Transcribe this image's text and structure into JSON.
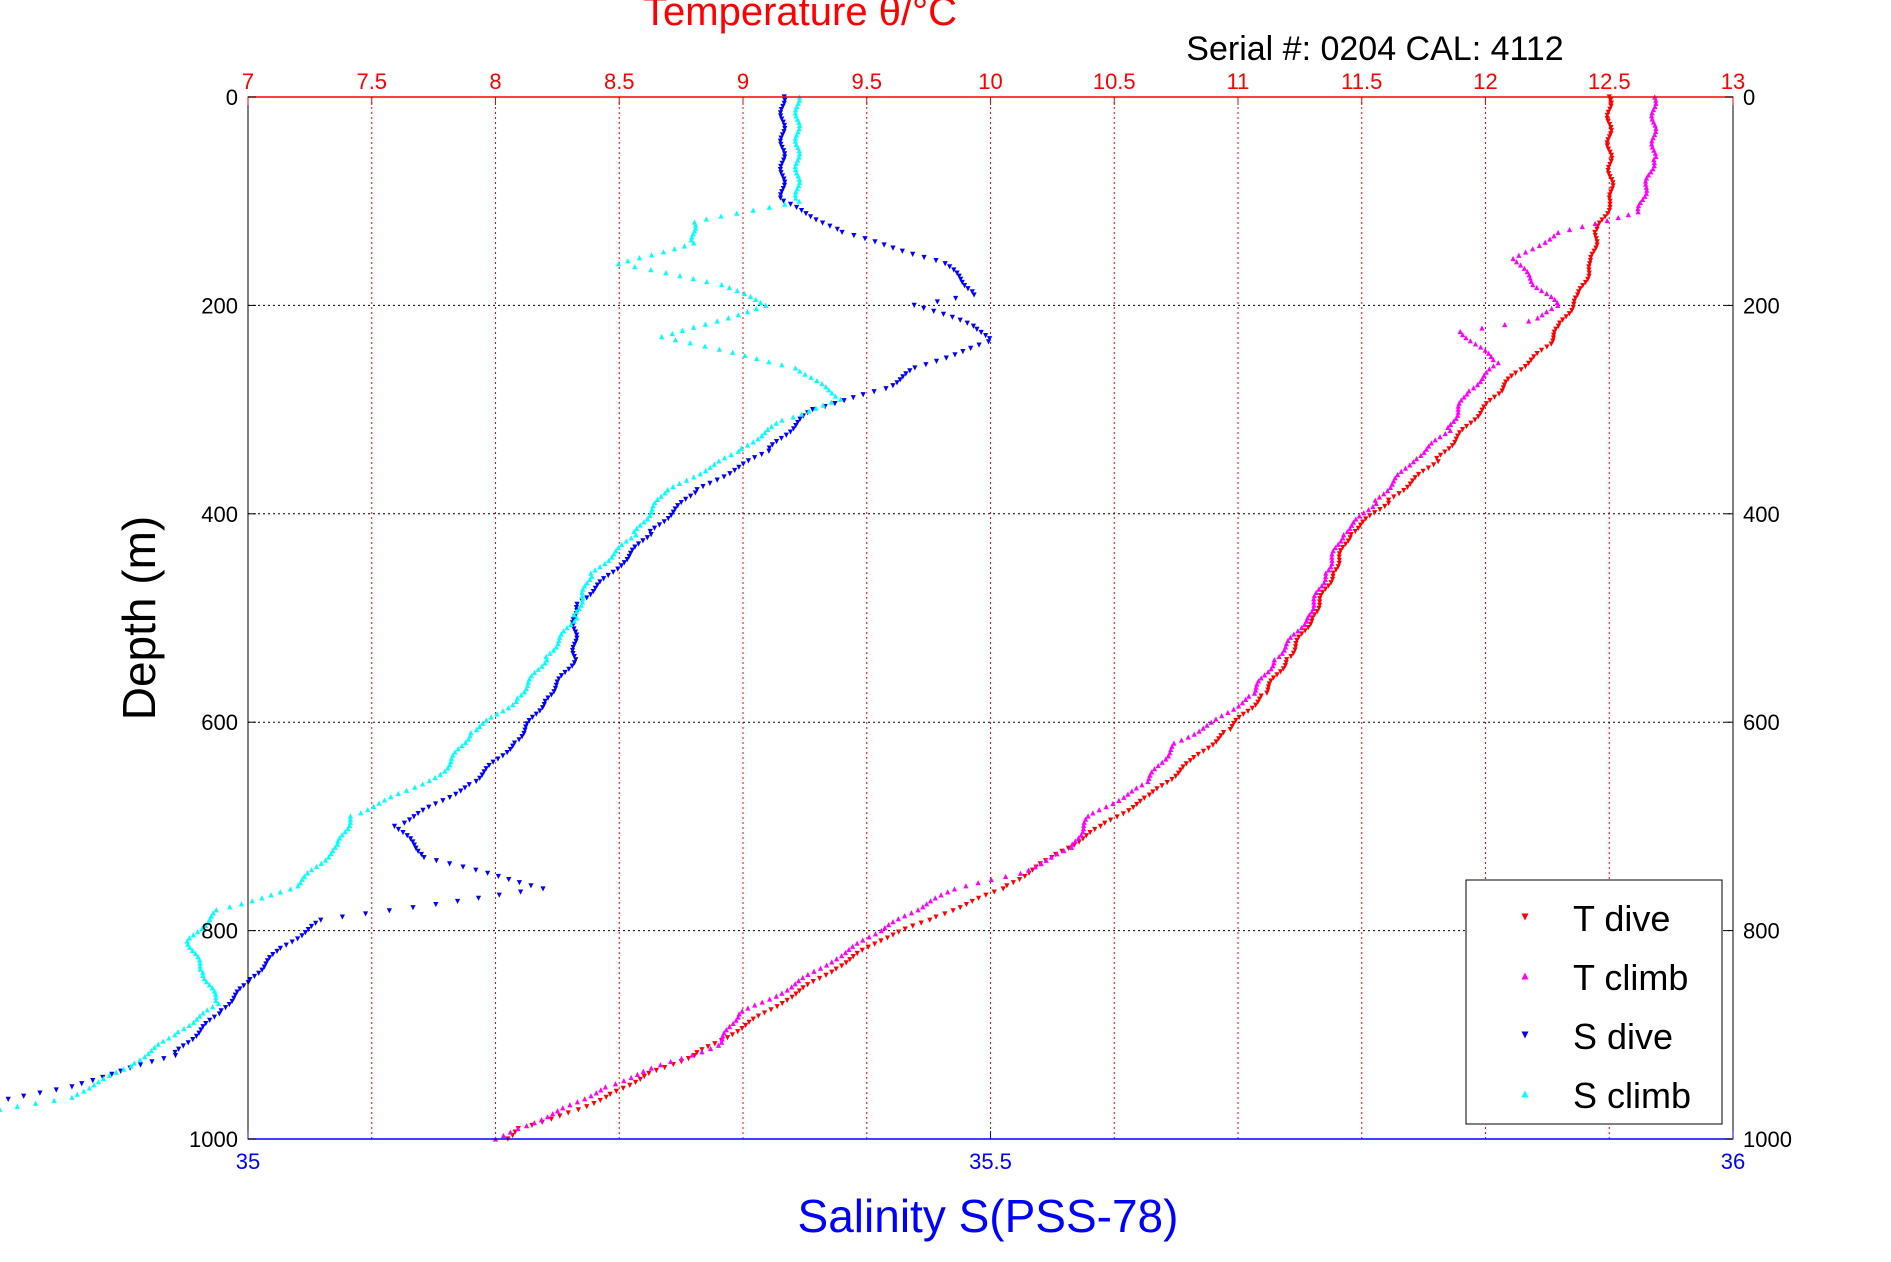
{
  "chart_data": {
    "type": "scatter",
    "title": "Temperature θ/°C",
    "subtitle": "Serial #: 0204  CAL: 4112",
    "ylabel": "Depth (m)",
    "xlabel": "Salinity S(PSS-78)",
    "ylim": [
      0,
      1000
    ],
    "y_inverted": true,
    "temperature_axis": {
      "position": "top",
      "range": [
        7,
        13
      ],
      "ticks": [
        "7",
        "7.5",
        "8",
        "8.5",
        "9",
        "9.5",
        "10",
        "10.5",
        "11",
        "11.5",
        "12",
        "12.5",
        "13"
      ],
      "color": "#ff0000"
    },
    "salinity_axis": {
      "position": "bottom",
      "range": [
        35,
        36
      ],
      "ticks": [
        "35",
        "35.5",
        "36"
      ],
      "color": "#0000ff"
    },
    "depth_ticks": [
      "0",
      "200",
      "400",
      "600",
      "800",
      "1000"
    ],
    "grid": true,
    "legend": {
      "placement": "bottom-right",
      "entries": [
        "T dive",
        "T climb",
        "S dive",
        "S climb"
      ]
    },
    "series": [
      {
        "name": "T dive",
        "axis": "temperature",
        "color": "#ff0000",
        "marker": "triangle-down",
        "points": [
          [
            12.5,
            0
          ],
          [
            12.5,
            50
          ],
          [
            12.51,
            100
          ],
          [
            12.45,
            130
          ],
          [
            12.43,
            160
          ],
          [
            12.38,
            190
          ],
          [
            12.3,
            220
          ],
          [
            12.25,
            240
          ],
          [
            12.12,
            265
          ],
          [
            12.05,
            285
          ],
          [
            11.95,
            310
          ],
          [
            11.8,
            350
          ],
          [
            11.6,
            390
          ],
          [
            11.45,
            420
          ],
          [
            11.38,
            460
          ],
          [
            11.3,
            500
          ],
          [
            11.2,
            540
          ],
          [
            11.1,
            575
          ],
          [
            10.95,
            610
          ],
          [
            10.8,
            640
          ],
          [
            10.65,
            670
          ],
          [
            10.45,
            700
          ],
          [
            10.25,
            730
          ],
          [
            10.05,
            760
          ],
          [
            9.75,
            790
          ],
          [
            9.55,
            810
          ],
          [
            9.35,
            840
          ],
          [
            9.15,
            870
          ],
          [
            8.95,
            900
          ],
          [
            8.8,
            920
          ],
          [
            8.6,
            940
          ],
          [
            8.45,
            960
          ],
          [
            8.3,
            975
          ],
          [
            8.1,
            990
          ],
          [
            8.05,
            1000
          ]
        ]
      },
      {
        "name": "T climb",
        "axis": "temperature",
        "color": "#ff00ff",
        "marker": "triangle-up",
        "points": [
          [
            12.68,
            0
          ],
          [
            12.68,
            60
          ],
          [
            12.62,
            110
          ],
          [
            12.3,
            130
          ],
          [
            12.12,
            155
          ],
          [
            12.2,
            180
          ],
          [
            12.3,
            200
          ],
          [
            12.18,
            215
          ],
          [
            11.9,
            225
          ],
          [
            12.05,
            255
          ],
          [
            11.92,
            285
          ],
          [
            11.85,
            320
          ],
          [
            11.7,
            350
          ],
          [
            11.55,
            390
          ],
          [
            11.42,
            420
          ],
          [
            11.35,
            460
          ],
          [
            11.28,
            500
          ],
          [
            11.15,
            540
          ],
          [
            11.05,
            575
          ],
          [
            10.9,
            600
          ],
          [
            10.75,
            620
          ],
          [
            10.62,
            660
          ],
          [
            10.4,
            690
          ],
          [
            10.33,
            720
          ],
          [
            10.12,
            745
          ],
          [
            9.85,
            760
          ],
          [
            9.7,
            780
          ],
          [
            9.55,
            800
          ],
          [
            9.35,
            830
          ],
          [
            9.15,
            860
          ],
          [
            8.98,
            880
          ],
          [
            8.9,
            910
          ],
          [
            8.6,
            935
          ],
          [
            8.45,
            950
          ],
          [
            8.28,
            970
          ],
          [
            8.1,
            990
          ],
          [
            8.0,
            1000
          ]
        ]
      },
      {
        "name": "S dive",
        "axis": "salinity",
        "color": "#0000ff",
        "marker": "triangle-down",
        "points": [
          [
            35.36,
            0
          ],
          [
            35.36,
            100
          ],
          [
            35.4,
            130
          ],
          [
            35.47,
            160
          ],
          [
            35.49,
            190
          ],
          [
            35.45,
            200
          ],
          [
            35.49,
            220
          ],
          [
            35.5,
            235
          ],
          [
            35.45,
            260
          ],
          [
            35.43,
            280
          ],
          [
            35.38,
            300
          ],
          [
            35.35,
            340
          ],
          [
            35.3,
            380
          ],
          [
            35.27,
            420
          ],
          [
            35.25,
            450
          ],
          [
            35.22,
            490
          ],
          [
            35.22,
            540
          ],
          [
            35.2,
            580
          ],
          [
            35.18,
            620
          ],
          [
            35.15,
            660
          ],
          [
            35.1,
            700
          ],
          [
            35.12,
            730
          ],
          [
            35.2,
            760
          ],
          [
            35.05,
            790
          ],
          [
            35.02,
            820
          ],
          [
            35.0,
            850
          ],
          [
            34.98,
            880
          ],
          [
            34.95,
            920
          ],
          [
            34.88,
            950
          ],
          [
            34.78,
            980
          ],
          [
            34.75,
            1000
          ]
        ]
      },
      {
        "name": "S climb",
        "axis": "salinity",
        "color": "#00ffff",
        "marker": "triangle-up",
        "points": [
          [
            35.37,
            0
          ],
          [
            35.37,
            100
          ],
          [
            35.3,
            120
          ],
          [
            35.3,
            140
          ],
          [
            35.25,
            160
          ],
          [
            35.32,
            180
          ],
          [
            35.35,
            200
          ],
          [
            35.28,
            230
          ],
          [
            35.37,
            260
          ],
          [
            35.4,
            290
          ],
          [
            35.36,
            310
          ],
          [
            35.33,
            340
          ],
          [
            35.28,
            380
          ],
          [
            35.26,
            420
          ],
          [
            35.23,
            460
          ],
          [
            35.22,
            500
          ],
          [
            35.2,
            540
          ],
          [
            35.18,
            580
          ],
          [
            35.15,
            610
          ],
          [
            35.13,
            650
          ],
          [
            35.07,
            690
          ],
          [
            35.06,
            720
          ],
          [
            35.03,
            760
          ],
          [
            34.98,
            780
          ],
          [
            34.96,
            810
          ],
          [
            34.97,
            840
          ],
          [
            34.98,
            870
          ],
          [
            34.95,
            900
          ],
          [
            34.92,
            930
          ],
          [
            34.88,
            960
          ],
          [
            34.8,
            980
          ],
          [
            34.72,
            1000
          ]
        ]
      }
    ]
  }
}
